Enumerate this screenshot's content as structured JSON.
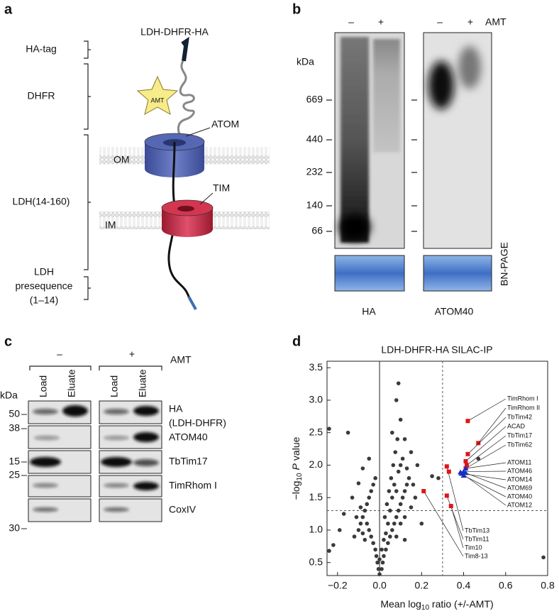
{
  "panel_a": {
    "letter": "a",
    "construct": "LDH-DHFR-HA",
    "regions": [
      "HA-tag",
      "DHFR",
      "LDH(14-160)"
    ],
    "presequence": [
      "LDH",
      "presequence",
      "(1–14)"
    ],
    "amt": "AMT",
    "atom": "ATOM",
    "tim": "TIM",
    "om": "OM",
    "im": "IM"
  },
  "panel_b": {
    "letter": "b",
    "lanes": [
      "–",
      "+",
      "–",
      "+"
    ],
    "treatment": "AMT",
    "unit": "kDa",
    "markers": [
      669,
      440,
      232,
      140,
      66
    ],
    "blots": [
      "HA",
      "ATOM40"
    ],
    "method": "BN-PAGE"
  },
  "panel_c": {
    "letter": "c",
    "groups": [
      "–",
      "+"
    ],
    "treatment": "AMT",
    "unit": "kDa",
    "lanes": [
      "Load",
      "Eluate",
      "Load",
      "Eluate"
    ],
    "rows": [
      {
        "marker": 50,
        "label": [
          "HA",
          "(LDH-DHFR)"
        ]
      },
      {
        "marker": 38,
        "label": [
          "ATOM40"
        ]
      },
      {
        "marker": 15,
        "label": [
          "TbTim17"
        ]
      },
      {
        "marker": 25,
        "label": [
          "TimRhom I"
        ]
      },
      {
        "marker": 30,
        "label": [
          "CoxIV"
        ]
      }
    ]
  },
  "chart_data": {
    "type": "scatter",
    "letter": "d",
    "title": "LDH-DHFR-HA SILAC-IP",
    "xlabel": {
      "pre": "Mean log",
      "sub": "10",
      "post": " ratio (+/-AMT)"
    },
    "ylabel": {
      "pre": "−log",
      "sub": "10",
      "italic": "P",
      "post": "value"
    },
    "xlim": [
      -0.25,
      0.8
    ],
    "xticks": [
      {
        "value": -0.2,
        "label": "−0.2"
      },
      {
        "value": 0,
        "label": "0.0"
      },
      0.2,
      0.4,
      0.6,
      0.8
    ],
    "ylim": [
      0.3,
      3.6
    ],
    "yticks": [
      0.5,
      {
        "value": 1,
        "label": "1.0"
      },
      1.5,
      {
        "value": 2,
        "label": "2.0"
      },
      2.5,
      {
        "value": 3,
        "label": "3.0"
      },
      3.5
    ],
    "vlines": [
      0
    ],
    "thresholds": {
      "x": 0.3,
      "y": 1.3
    },
    "series": [
      {
        "color": "#3a3a3a",
        "marker": "circle",
        "x": [
          -0.24,
          -0.15,
          -0.24,
          -0.22,
          -0.19,
          -0.17,
          -0.13,
          -0.1,
          -0.08,
          -0.05,
          0.09,
          0.08,
          0.1,
          0.06,
          0.12,
          0.15,
          0.18,
          0.25,
          0.28,
          0.78,
          0.47,
          0.12,
          0.2,
          -0.12,
          -0.1,
          -0.09,
          -0.08,
          -0.07,
          -0.06,
          -0.05,
          -0.04,
          -0.03,
          -0.02,
          -0.06,
          -0.05,
          -0.04,
          -0.03,
          -0.02,
          -0.015,
          -0.01,
          -0.005,
          0,
          -0.08,
          -0.07,
          -0.11,
          -0.09,
          0.01,
          0.015,
          0.02,
          0.03,
          0.04,
          0.05,
          0.06,
          0.07,
          0.08,
          0.09,
          0.1,
          0.11,
          0.12,
          0.13,
          0.14,
          0.05,
          0.06,
          0.07,
          0.04,
          0.03,
          0.08,
          0.09,
          0.1,
          0.11,
          0.13,
          0.16,
          0.17,
          0.15,
          0.12,
          0.1,
          0.08,
          0.02,
          0.01,
          0,
          0.025,
          0.035,
          0.045,
          0.055,
          0.065,
          0.075,
          0.085
        ],
        "values": [
          2.56,
          2.5,
          0.68,
          0.77,
          1.0,
          1.25,
          1.5,
          1.72,
          1.95,
          2.1,
          3.26,
          3.0,
          2.7,
          2.5,
          2.4,
          2.2,
          2.0,
          1.83,
          1.8,
          0.58,
          2.1,
          0.85,
          1.1,
          0.9,
          1.0,
          1.1,
          1.2,
          1.3,
          1.4,
          1.5,
          1.6,
          1.7,
          1.8,
          1.1,
          1.0,
          0.9,
          0.8,
          0.7,
          0.6,
          0.5,
          0.4,
          0.32,
          0.95,
          0.85,
          1.2,
          1.35,
          0.4,
          0.5,
          0.6,
          0.7,
          0.8,
          0.9,
          1.0,
          1.1,
          1.2,
          1.3,
          1.4,
          1.5,
          1.6,
          1.7,
          1.8,
          1.3,
          1.5,
          1.7,
          1.1,
          0.95,
          1.6,
          1.9,
          2.0,
          2.1,
          1.95,
          1.7,
          1.5,
          1.35,
          1.2,
          1.1,
          0.9,
          0.85,
          0.7,
          0.55,
          1.2,
          1.4,
          1.6,
          1.8,
          2.0,
          2.2,
          2.4
        ]
      },
      {
        "color": "#e0151b",
        "marker": "square",
        "x": [
          0.42,
          0.47,
          0.42,
          0.41,
          0.415,
          0.41,
          0.32,
          0.33,
          0.32,
          0.34,
          0.21
        ],
        "values": [
          2.68,
          2.34,
          2.17,
          2.06,
          2.0,
          1.95,
          1.98,
          1.9,
          1.53,
          1.37,
          1.6
        ],
        "labels": [
          "TimRhom I",
          "TimRhom II",
          "TbTim42",
          "ACAD",
          "TbTim17",
          "TbTim62",
          "TbTim13",
          null,
          "TbTim11",
          "Tim10",
          "Tim8-13"
        ]
      },
      {
        "color": "#1a2fc4",
        "marker": "triangle",
        "x": [
          0.41,
          0.4,
          0.39,
          0.41,
          0.4,
          0.385
        ],
        "values": [
          1.95,
          1.9,
          1.87,
          1.88,
          1.84,
          1.89
        ],
        "labels": [
          "ATOM11",
          "ATOM46",
          "ATOM14",
          "ATOM69",
          "ATOM40",
          "ATOM12"
        ]
      }
    ]
  }
}
